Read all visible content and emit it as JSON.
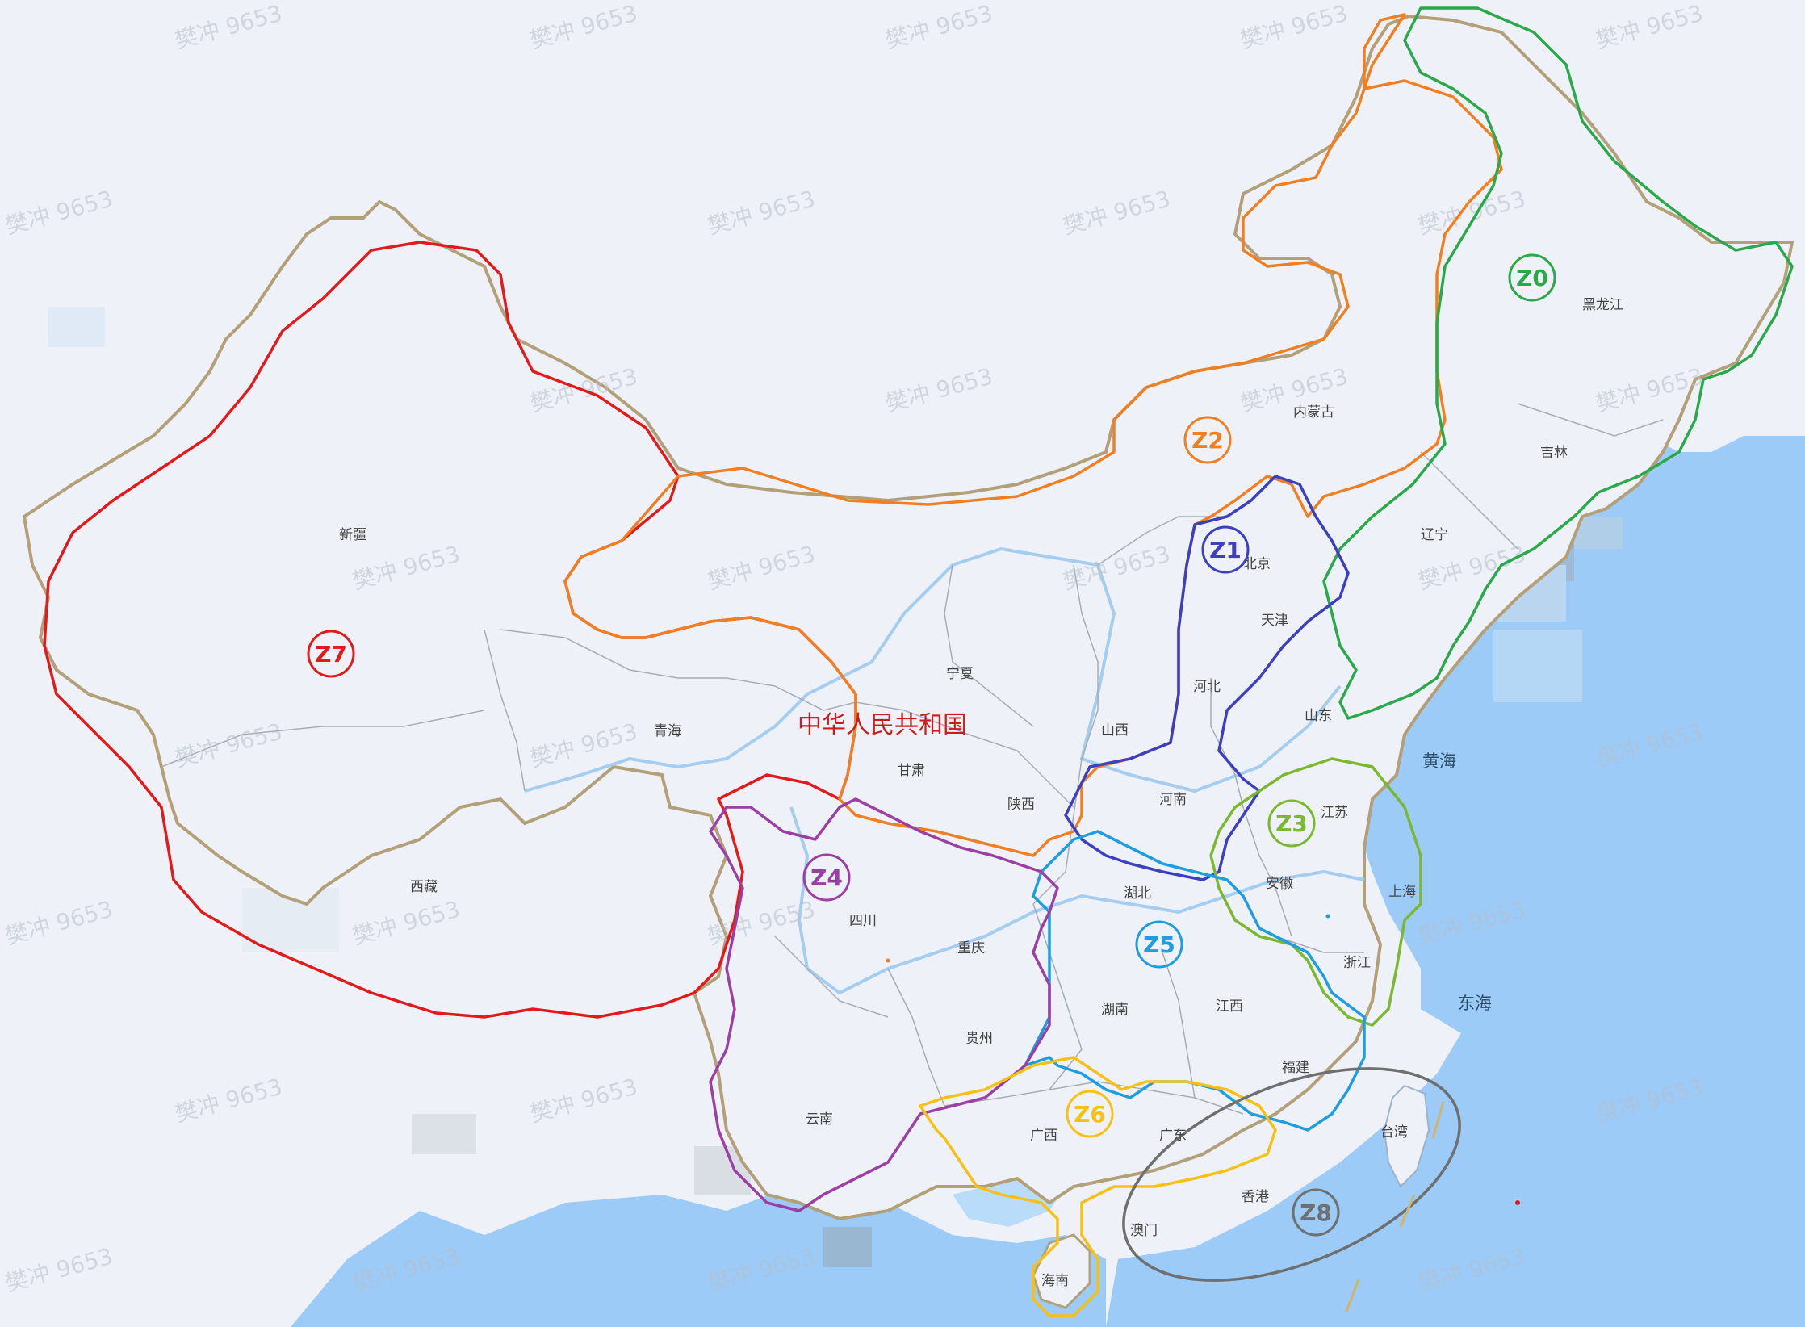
{
  "map": {
    "country_name": "中华人民共和国",
    "watermark_text": "樊冲 9653",
    "colors": {
      "land": "#eef2f8",
      "sea": "#8cc4f5",
      "sea_light": "#b9dcfa",
      "border": "#b3a079",
      "province_border": "#a9acb3",
      "river": "#9cc9ef"
    },
    "provinces": {
      "heilongjiang": "黑龙江",
      "jilin": "吉林",
      "liaoning": "辽宁",
      "neimenggu": "内蒙古",
      "beijing": "北京",
      "tianjin": "天津",
      "hebei": "河北",
      "shanxi": "山西",
      "shandong": "山东",
      "henan": "河南",
      "ningxia": "宁夏",
      "gansu": "甘肃",
      "shaanxi": "陕西",
      "qinghai": "青海",
      "xinjiang": "新疆",
      "xizang": "西藏",
      "sichuan": "四川",
      "chongqing": "重庆",
      "hubei": "湖北",
      "anhui": "安徽",
      "jiangsu": "江苏",
      "shanghai": "上海",
      "zhejiang": "浙江",
      "jiangxi": "江西",
      "hunan": "湖南",
      "guizhou": "贵州",
      "yunnan": "云南",
      "guangxi": "广西",
      "guangdong": "广东",
      "fujian": "福建",
      "taiwan": "台湾",
      "hainan": "海南",
      "hongkong": "香港",
      "macau": "澳门"
    },
    "seas": {
      "huanghai": "黄海",
      "donghai": "东海"
    },
    "zones": [
      {
        "id": "Z0",
        "color": "#2aa84a"
      },
      {
        "id": "Z1",
        "color": "#3b3fc0"
      },
      {
        "id": "Z2",
        "color": "#f07f22"
      },
      {
        "id": "Z3",
        "color": "#7cb82f"
      },
      {
        "id": "Z4",
        "color": "#9b3fa5"
      },
      {
        "id": "Z5",
        "color": "#1e9ee0"
      },
      {
        "id": "Z6",
        "color": "#f5c116"
      },
      {
        "id": "Z7",
        "color": "#e11b1b"
      },
      {
        "id": "Z8",
        "color": "#6f6f6f"
      }
    ]
  }
}
